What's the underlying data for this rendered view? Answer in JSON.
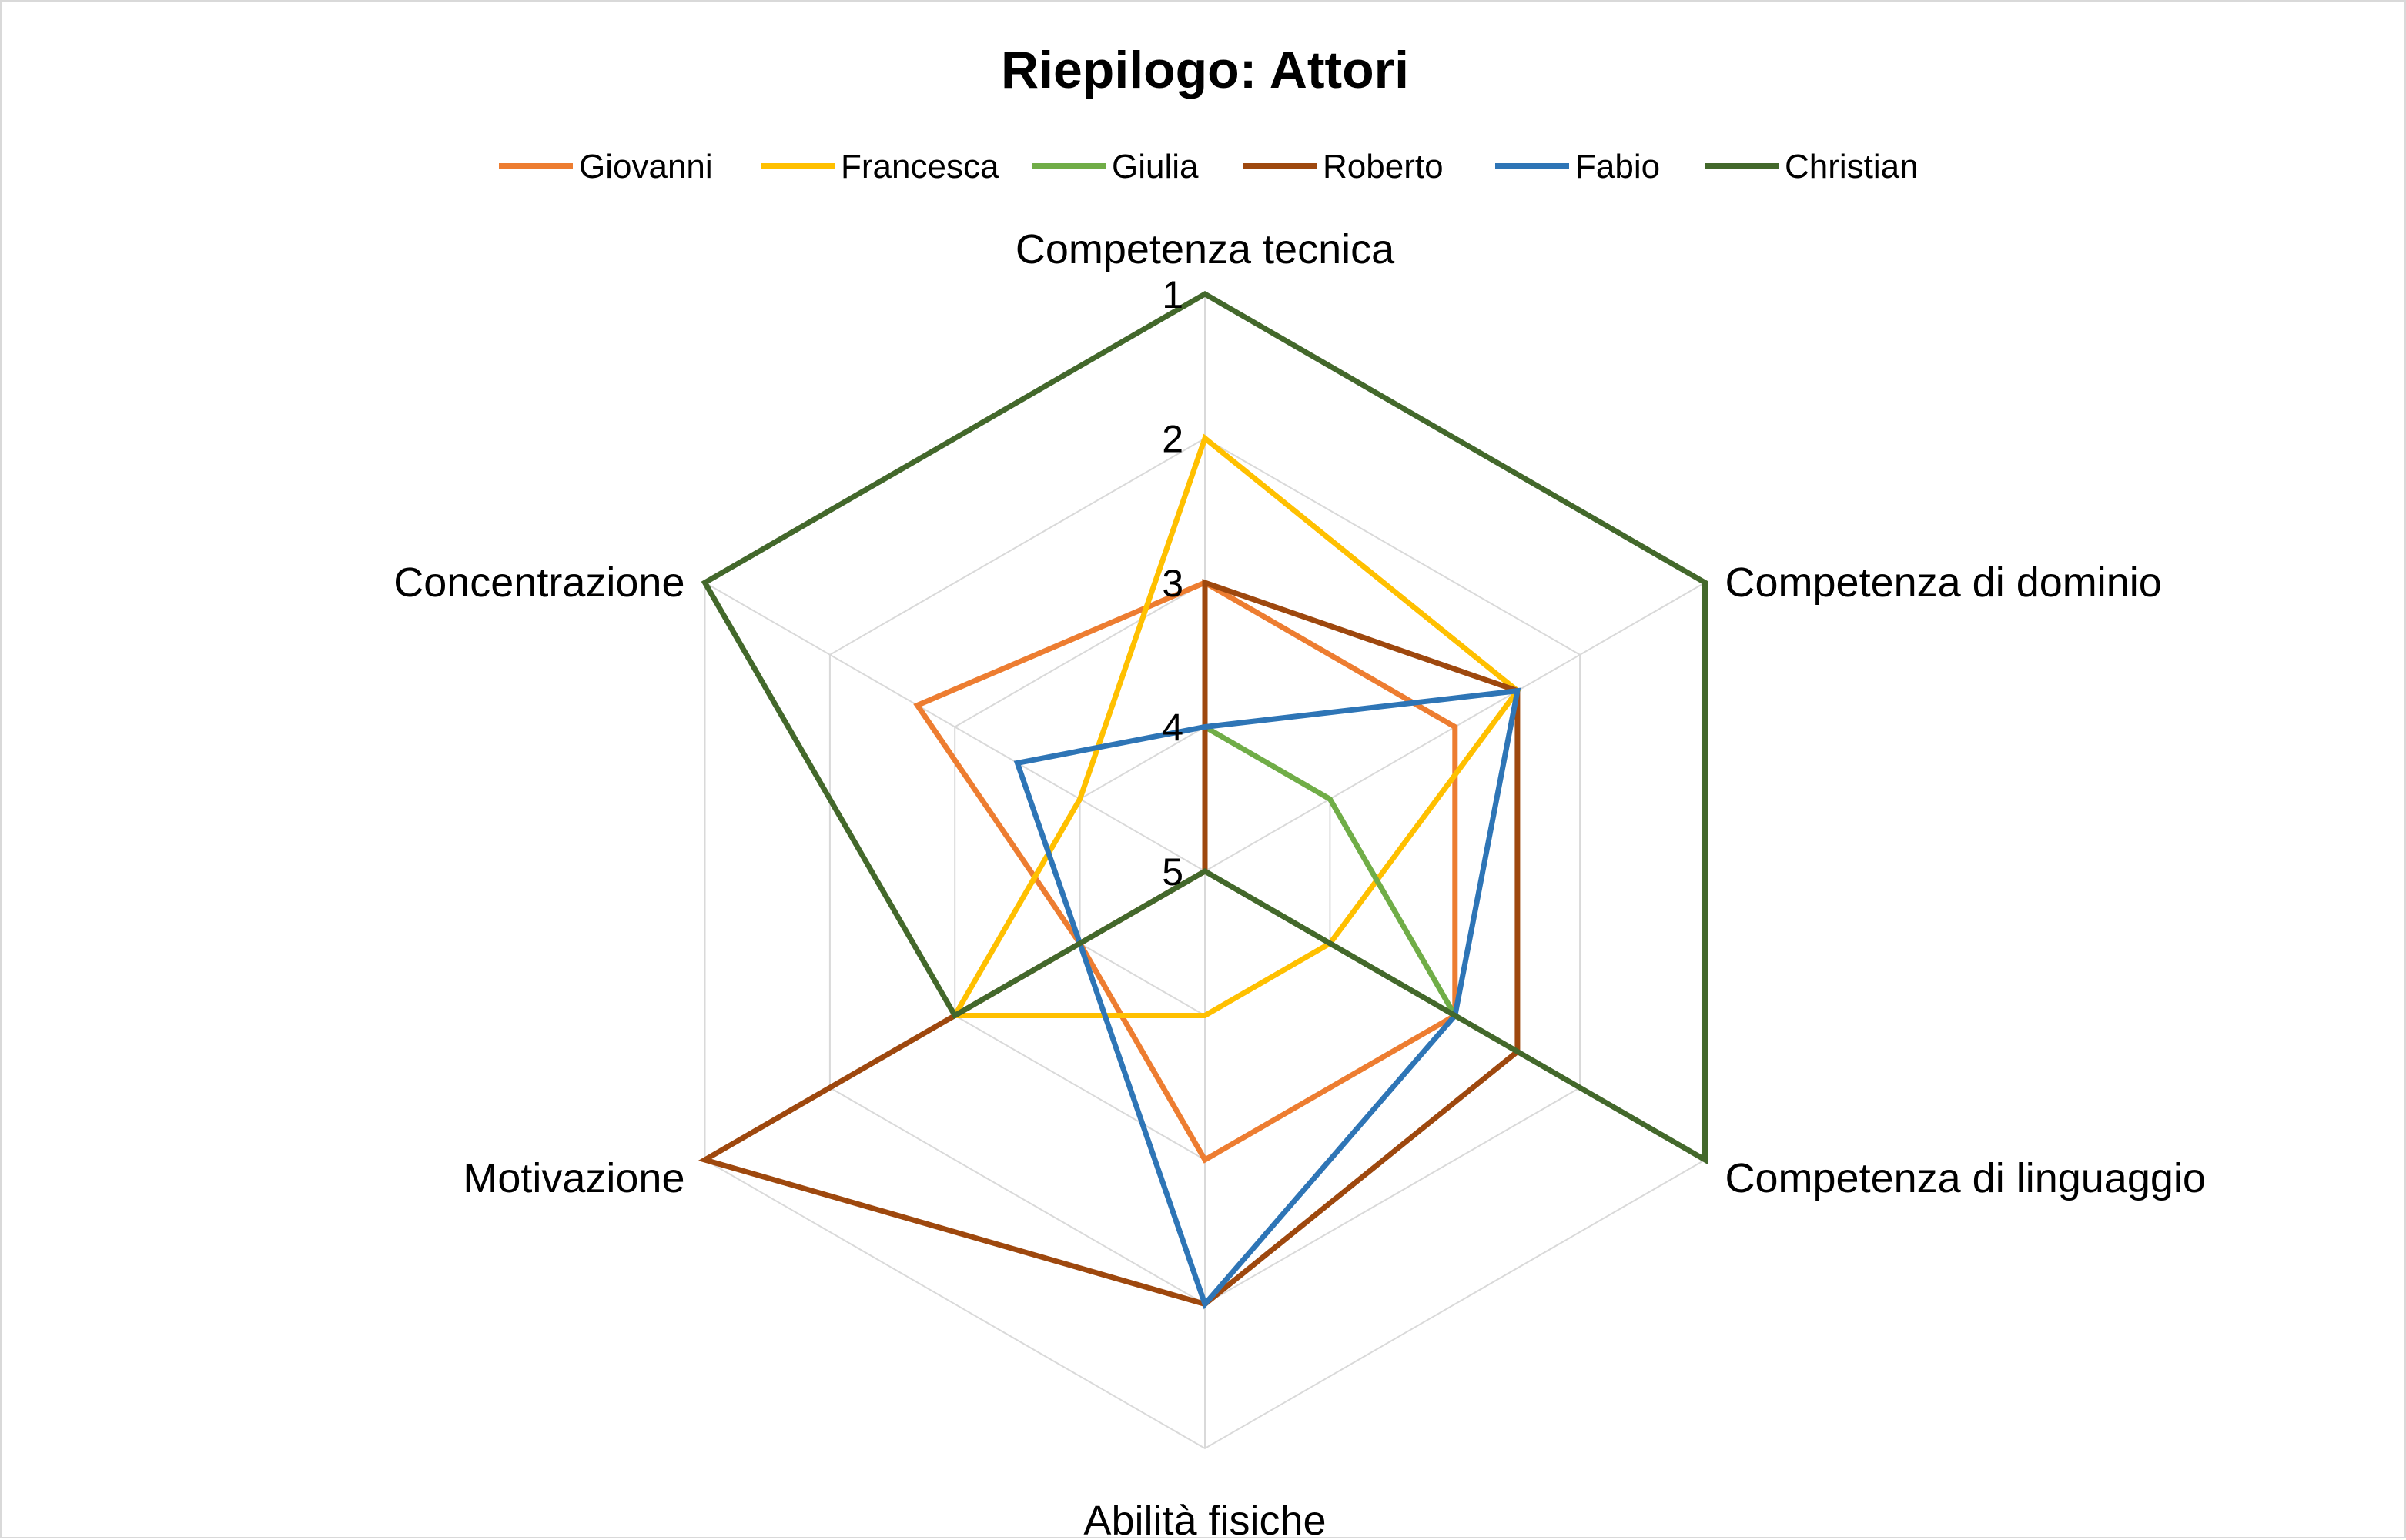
{
  "chart_data": {
    "type": "radar",
    "title": "Riepilogo: Attori",
    "axes": [
      "Competenza tecnica",
      "Competenza di dominio",
      "Competenza di linguaggio",
      "Abilità fisiche",
      "Motivazione",
      "Concentrazione"
    ],
    "scale": {
      "min": 1,
      "max": 5,
      "reversed": true,
      "ticks": [
        "1",
        "2",
        "3",
        "4",
        "5"
      ]
    },
    "grid": true,
    "legend_position": "top",
    "series": [
      {
        "name": "Giovanni",
        "color": "#ED7D31",
        "values": [
          3,
          3,
          3,
          3,
          4,
          2.7
        ]
      },
      {
        "name": "Francesca",
        "color": "#FFC000",
        "values": [
          2,
          2.5,
          4,
          4,
          3,
          4
        ]
      },
      {
        "name": "Giulia",
        "color": "#70AD47",
        "values": [
          4,
          4,
          3,
          5,
          5,
          5
        ]
      },
      {
        "name": "Roberto",
        "color": "#9E480E",
        "values": [
          3,
          2.5,
          2.5,
          2,
          1,
          5
        ]
      },
      {
        "name": "Fabio",
        "color": "#2E75B6",
        "values": [
          4,
          2.5,
          3,
          2,
          4,
          3.5
        ]
      },
      {
        "name": "Christian",
        "color": "#43682B",
        "values": [
          1,
          1,
          1,
          5,
          3,
          1
        ]
      }
    ]
  }
}
